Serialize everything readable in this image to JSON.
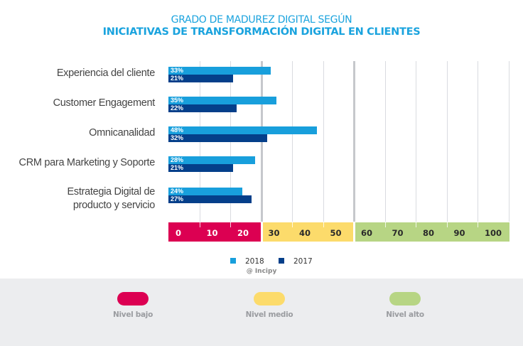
{
  "chart_data": {
    "type": "bar",
    "orientation": "horizontal",
    "title": "GRADO DE MADUREZ DIGITAL SEGÚN",
    "subtitle": "INICIATIVAS DE TRANSFORMACIÓN DIGITAL EN CLIENTES",
    "categories": [
      "Experiencia del cliente",
      "Customer Engagement",
      "Omnicanalidad",
      "CRM para Marketing y Soporte",
      "Estrategia Digital de producto y servicio"
    ],
    "category_lines": [
      [
        "Experiencia del cliente"
      ],
      [
        "Customer Engagement"
      ],
      [
        "Omnicanalidad"
      ],
      [
        "CRM para Marketing y Soporte"
      ],
      [
        "Estrategia Digital de",
        "producto y servicio"
      ]
    ],
    "series": [
      {
        "name": "2018",
        "color": "#189fdc",
        "values": [
          33,
          35,
          48,
          28,
          24
        ],
        "labels": [
          "33%",
          "35%",
          "48%",
          "28%",
          "24%"
        ]
      },
      {
        "name": "2017",
        "color": "#043f8a",
        "values": [
          21,
          22,
          32,
          21,
          27
        ],
        "labels": [
          "21%",
          "22%",
          "32%",
          "21%",
          "27%"
        ]
      }
    ],
    "xlim": [
      0,
      110
    ],
    "xticks": [
      "0",
      "10",
      "20",
      "30",
      "40",
      "50",
      "60",
      "70",
      "80",
      "90",
      "100"
    ],
    "xtick_values": [
      0,
      10,
      20,
      30,
      40,
      50,
      60,
      70,
      80,
      90,
      100
    ],
    "grid": true,
    "zones": [
      {
        "name": "Nivel bajo",
        "from": 0,
        "to": 30,
        "color": "#dc0052",
        "tick_color": "#ffffff"
      },
      {
        "name": "Nivel medio",
        "from": 30,
        "to": 60,
        "color": "#fcdb6b",
        "tick_color": "#2a2a2a"
      },
      {
        "name": "Nivel alto",
        "from": 60,
        "to": 110,
        "color": "#b7d584",
        "tick_color": "#2a2a2a"
      }
    ],
    "legend_position": "bottom-center",
    "credit": "@ Incipy"
  },
  "footer": {
    "levels": [
      {
        "label": "Nivel bajo",
        "color": "#dc0052"
      },
      {
        "label": "Nivel medio",
        "color": "#fcdb6b"
      },
      {
        "label": "Nivel alto",
        "color": "#b7d584"
      }
    ]
  }
}
